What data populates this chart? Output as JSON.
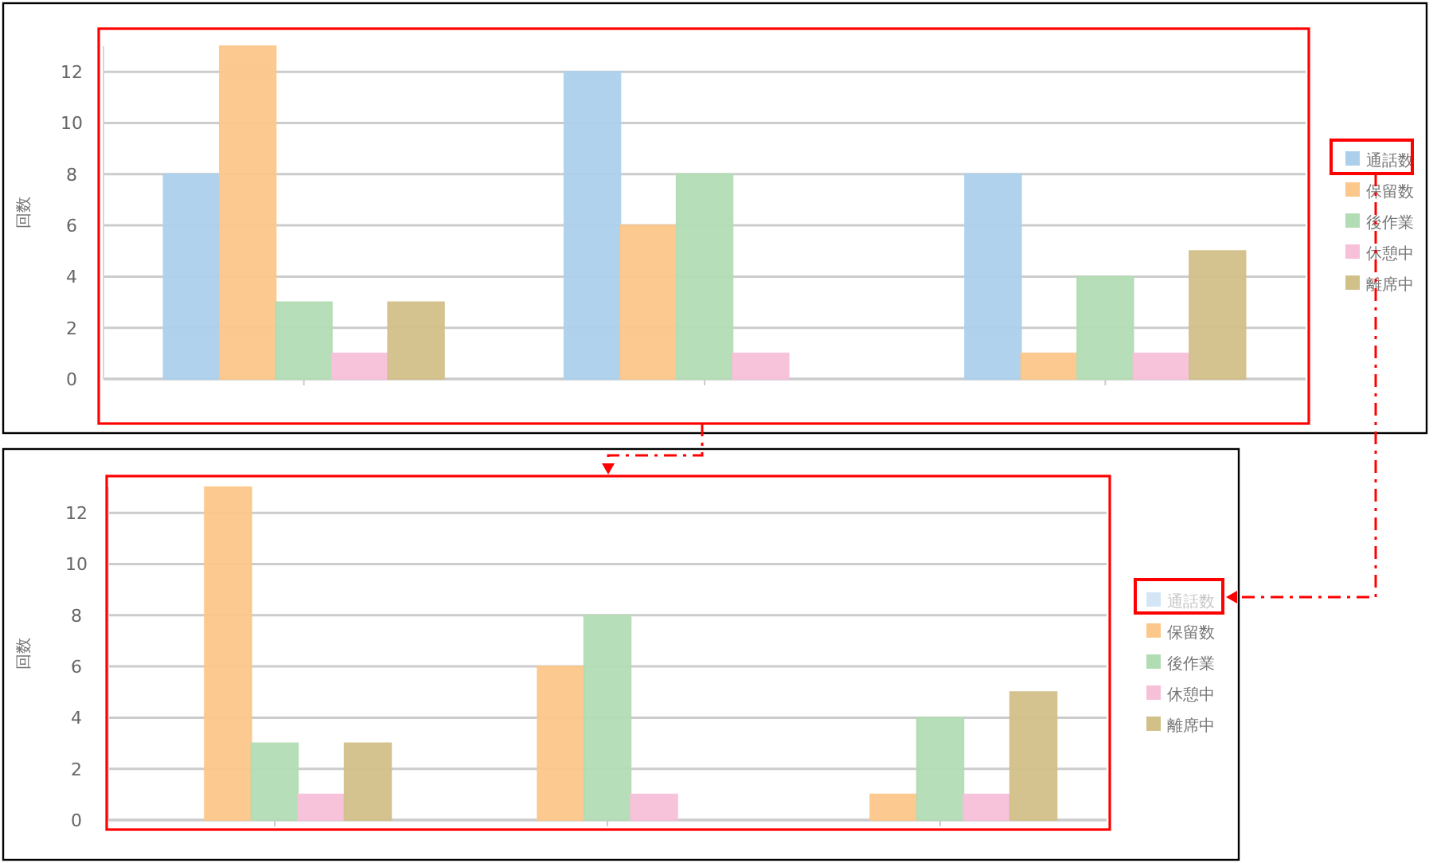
{
  "chart_data": [
    {
      "type": "bar",
      "ylabel": "回数",
      "categories": [
        null,
        null,
        null
      ],
      "ylim": [
        0,
        13
      ],
      "yticks": [
        0,
        2,
        4,
        6,
        8,
        10,
        12
      ],
      "grid": "y",
      "legend": "right",
      "series": [
        {
          "name": "通話数",
          "color": "#acd0ec",
          "values": [
            8,
            12,
            8
          ]
        },
        {
          "name": "保留数",
          "color": "#fcc78a",
          "values": [
            13,
            6,
            1
          ]
        },
        {
          "name": "後作業",
          "color": "#b2dcb4",
          "values": [
            3,
            8,
            4
          ]
        },
        {
          "name": "休憩中",
          "color": "#f7c0d9",
          "values": [
            1,
            1,
            1
          ]
        },
        {
          "name": "離席中",
          "color": "#d2c089",
          "values": [
            3,
            null,
            5
          ]
        }
      ]
    },
    {
      "type": "bar",
      "ylabel": "回数",
      "categories": [
        null,
        null,
        null
      ],
      "ylim": [
        0,
        13
      ],
      "yticks": [
        0,
        2,
        4,
        6,
        8,
        10,
        12
      ],
      "grid": "y",
      "legend": "right",
      "series": [
        {
          "name": "通話数",
          "color": "#d4e6f6",
          "values": [
            null,
            null,
            null
          ]
        },
        {
          "name": "保留数",
          "color": "#fcc78a",
          "values": [
            13,
            6,
            1
          ]
        },
        {
          "name": "後作業",
          "color": "#b2dcb4",
          "values": [
            3,
            8,
            4
          ]
        },
        {
          "name": "休憩中",
          "color": "#f7c0d9",
          "values": [
            1,
            1,
            1
          ]
        },
        {
          "name": "離席中",
          "color": "#d2c089",
          "values": [
            3,
            null,
            5
          ]
        }
      ]
    }
  ]
}
